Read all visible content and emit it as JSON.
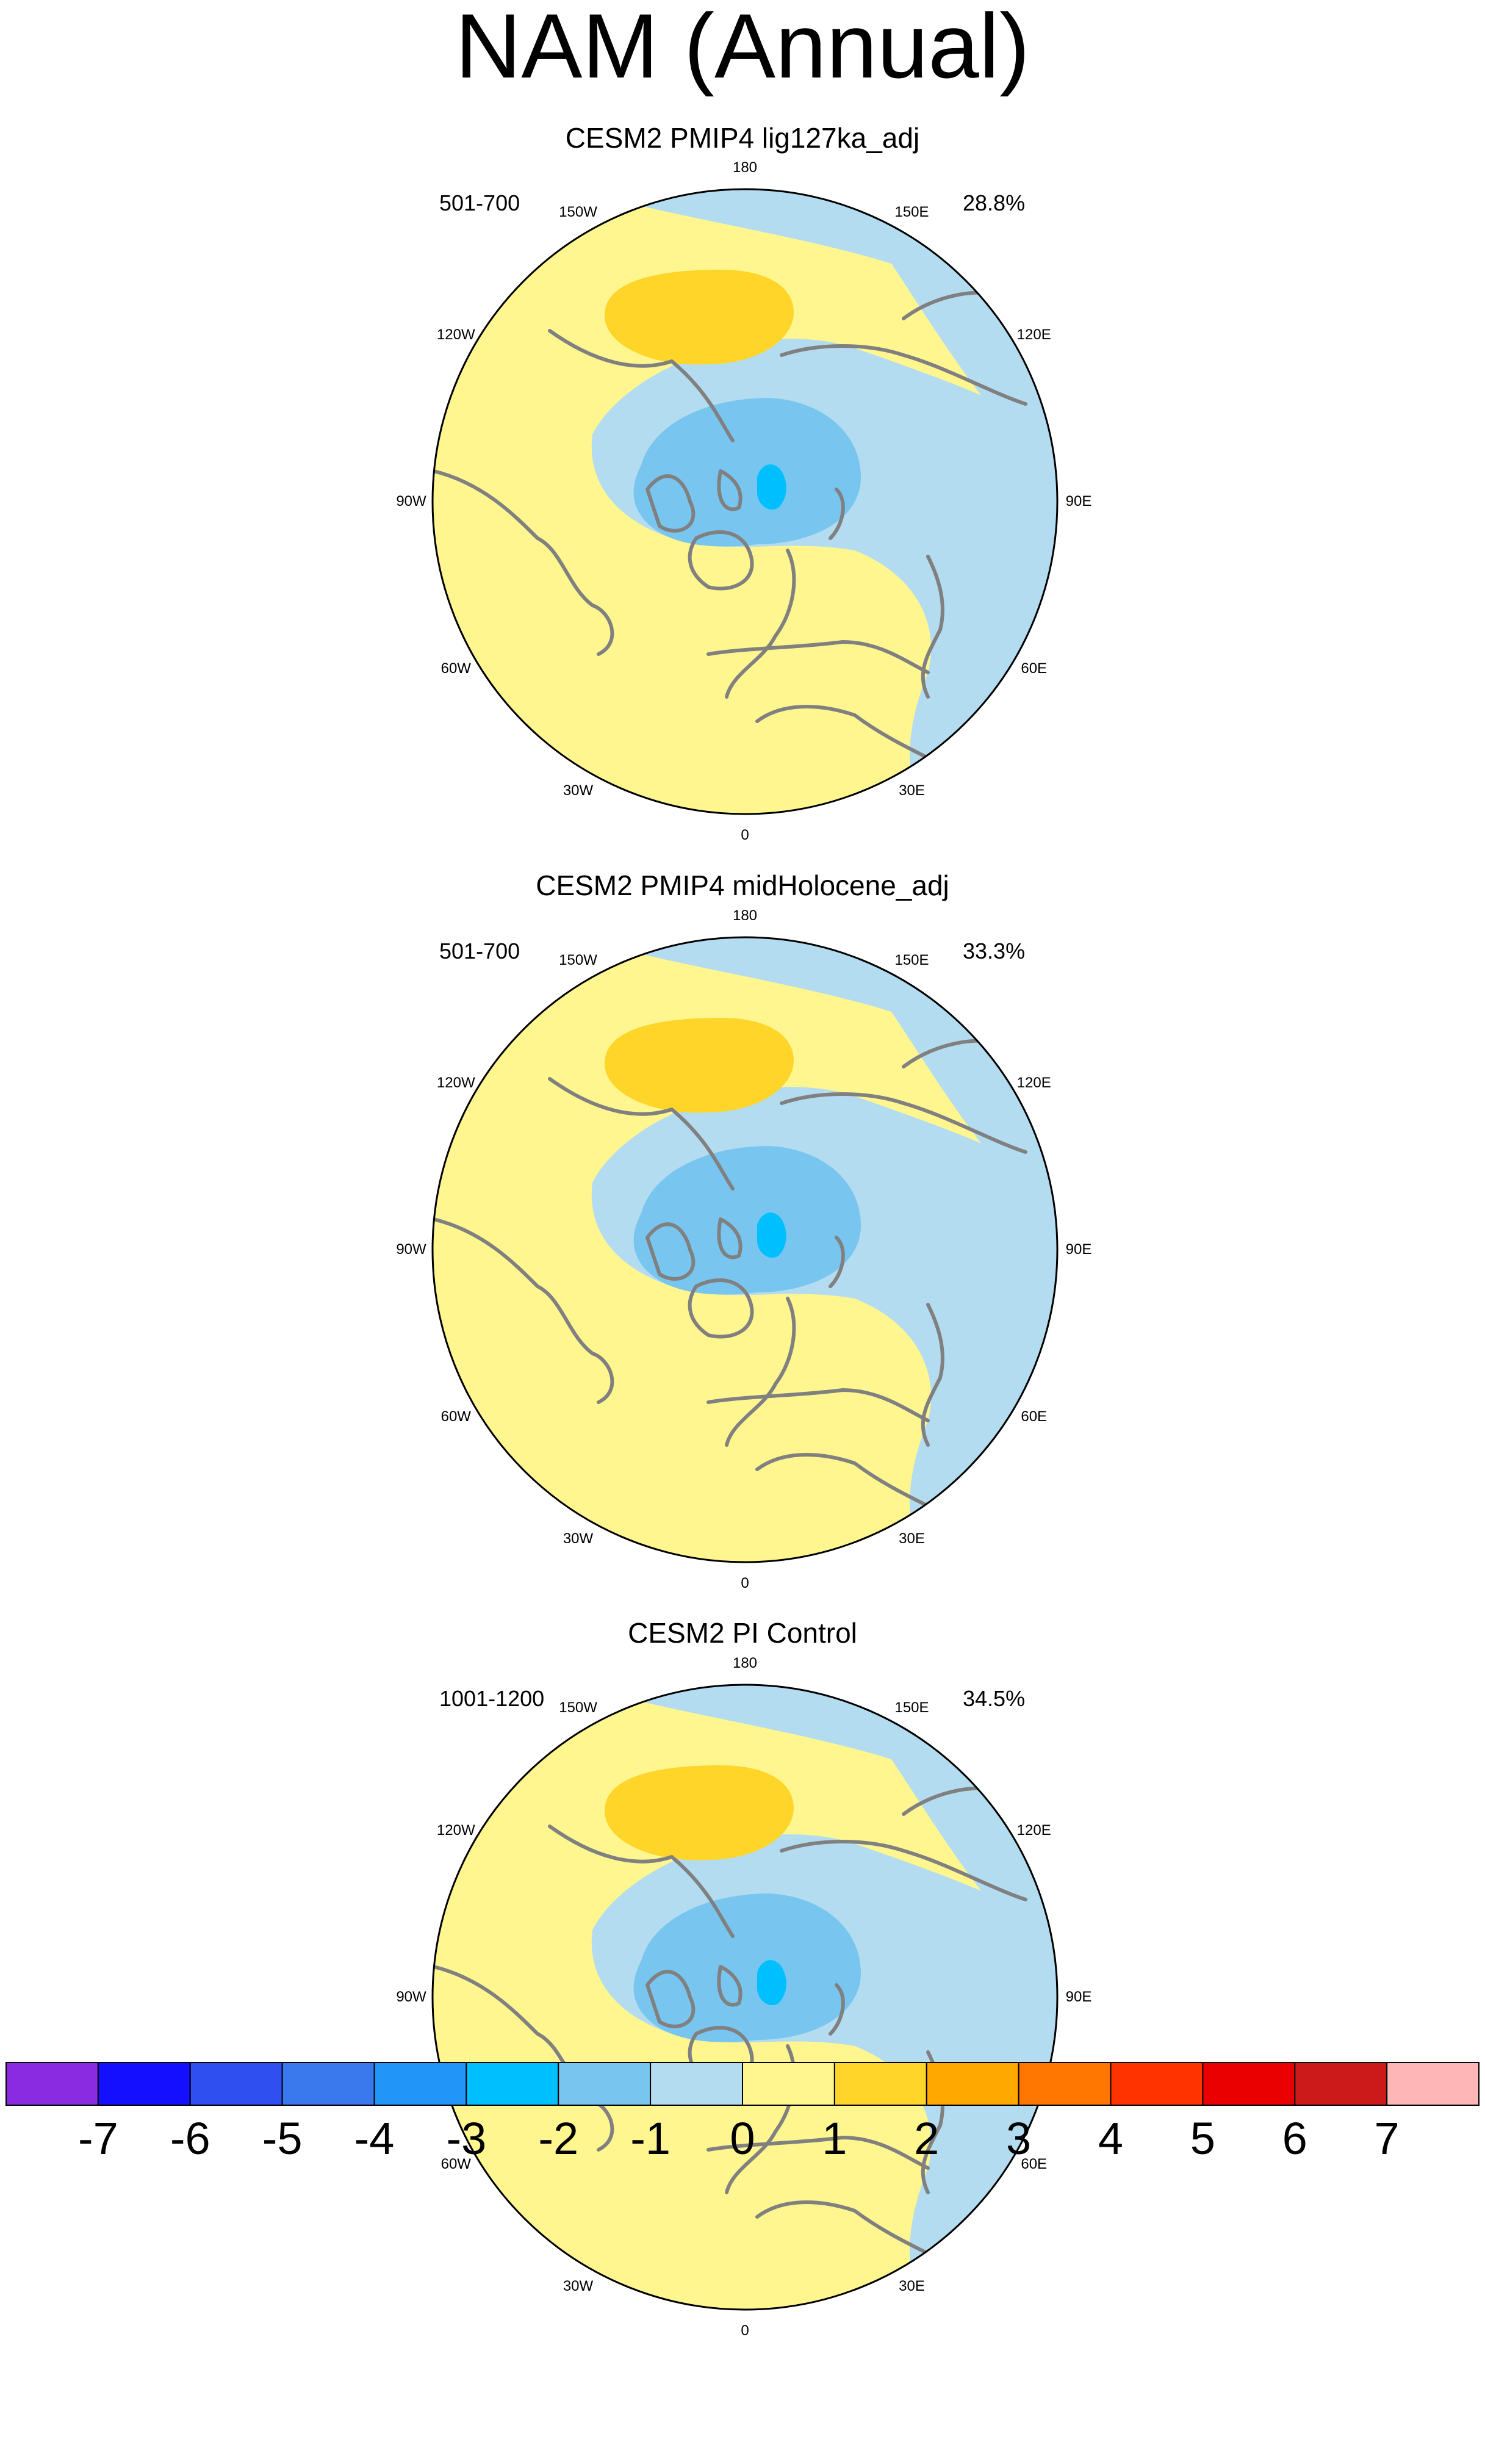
{
  "title": "NAM (Annual)",
  "panels": [
    {
      "title": "CESM2 PMIP4 lig127ka_adj",
      "years": "501-700",
      "variance": "28.8%"
    },
    {
      "title": "CESM2 PMIP4 midHolocene_adj",
      "years": "501-700",
      "variance": "33.3%"
    },
    {
      "title": "CESM2 PI Control",
      "years": "1001-1200",
      "variance": "34.5%"
    }
  ],
  "longitude_labels": [
    "180",
    "150E",
    "120E",
    "90E",
    "60E",
    "30E",
    "0",
    "30W",
    "60W",
    "90W",
    "120W",
    "150W"
  ],
  "colorbar": {
    "ticks": [
      "-7",
      "-6",
      "-5",
      "-4",
      "-3",
      "-2",
      "-1",
      "0",
      "1",
      "2",
      "3",
      "4",
      "5",
      "6",
      "7"
    ],
    "colors": [
      "#8a2be2",
      "#1410ff",
      "#2f4ff0",
      "#3a78ee",
      "#2196f8",
      "#00bfff",
      "#78c6ef",
      "#b4dcf0",
      "#fff68f",
      "#ffd52a",
      "#ffa800",
      "#ff7700",
      "#ff3300",
      "#ea0000",
      "#cc1a1a",
      "#ffb6b6"
    ]
  },
  "colors": {
    "land_outline": "#808080",
    "map_border": "#000000"
  }
}
